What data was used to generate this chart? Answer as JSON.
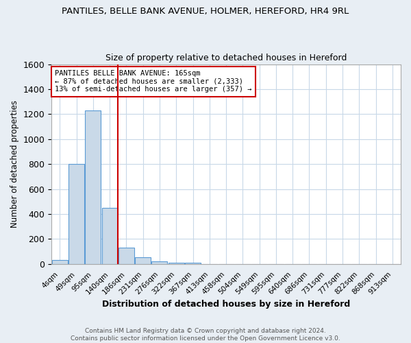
{
  "title": "PANTILES, BELLE BANK AVENUE, HOLMER, HEREFORD, HR4 9RL",
  "subtitle": "Size of property relative to detached houses in Hereford",
  "xlabel": "Distribution of detached houses by size in Hereford",
  "ylabel": "Number of detached properties",
  "bar_labels": [
    "4sqm",
    "49sqm",
    "95sqm",
    "140sqm",
    "186sqm",
    "231sqm",
    "276sqm",
    "322sqm",
    "367sqm",
    "413sqm",
    "458sqm",
    "504sqm",
    "549sqm",
    "595sqm",
    "640sqm",
    "686sqm",
    "731sqm",
    "777sqm",
    "822sqm",
    "868sqm",
    "913sqm"
  ],
  "bar_values": [
    30,
    800,
    1230,
    450,
    130,
    55,
    20,
    10,
    10,
    0,
    0,
    0,
    0,
    0,
    0,
    0,
    0,
    0,
    0,
    0,
    0
  ],
  "bar_color": "#c9d9e8",
  "bar_edge_color": "#5b9bd5",
  "red_line_x": 3.5,
  "red_line_color": "#cc0000",
  "ylim": [
    0,
    1600
  ],
  "yticks": [
    0,
    200,
    400,
    600,
    800,
    1000,
    1200,
    1400,
    1600
  ],
  "annotation_box_text": "PANTILES BELLE BANK AVENUE: 165sqm\n← 87% of detached houses are smaller (2,333)\n13% of semi-detached houses are larger (357) →",
  "annotation_box_color": "#ffffff",
  "annotation_box_edge_color": "#cc0000",
  "footer_text": "Contains HM Land Registry data © Crown copyright and database right 2024.\nContains public sector information licensed under the Open Government Licence v3.0.",
  "background_color": "#e8eef4",
  "plot_background_color": "#ffffff",
  "grid_color": "#c8d8e8",
  "title_fontsize": 9.5,
  "subtitle_fontsize": 9
}
